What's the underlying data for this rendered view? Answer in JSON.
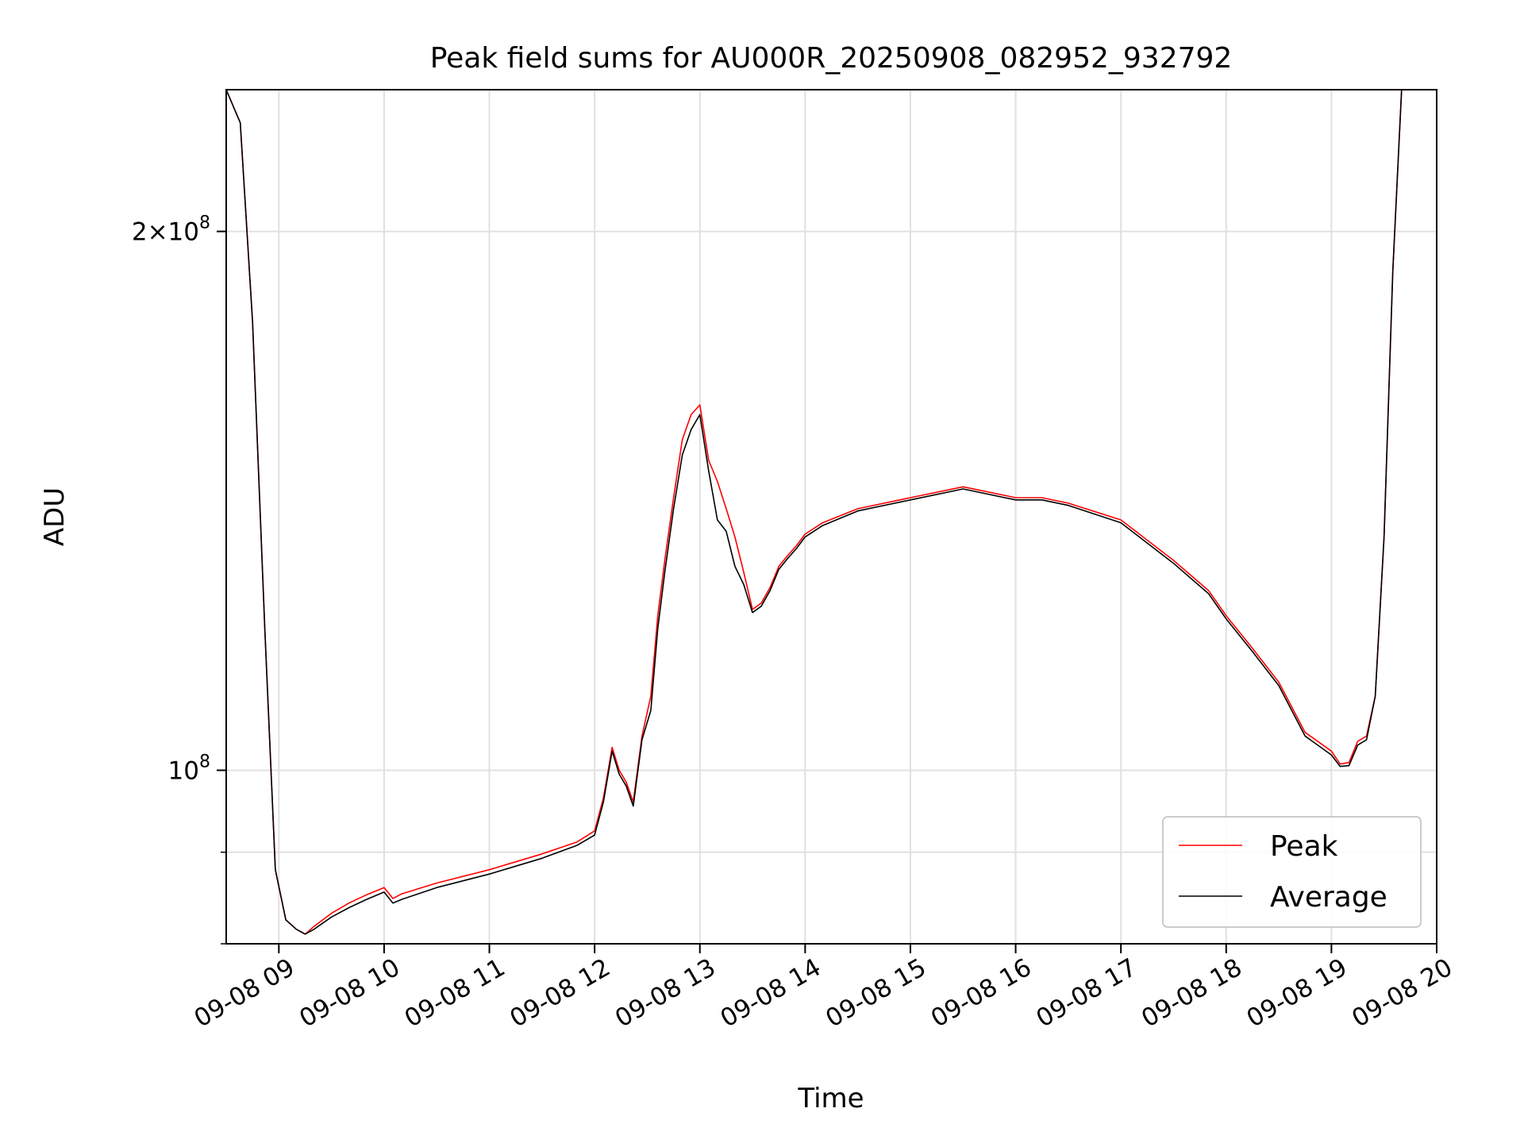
{
  "chart_data": {
    "type": "line",
    "title": "Peak field sums for AU000R_20250908_082952_932792",
    "xlabel": "Time",
    "ylabel": "ADU",
    "yscale": "log",
    "xlim": [
      "2025-09-08 08:30",
      "2025-09-08 20:00"
    ],
    "ylim": [
      80000000,
      240000000
    ],
    "x_ticks": [
      "09-08 09",
      "09-08 10",
      "09-08 11",
      "09-08 12",
      "09-08 13",
      "09-08 14",
      "09-08 15",
      "09-08 16",
      "09-08 17",
      "09-08 18",
      "09-08 19",
      "09-08 20"
    ],
    "y_ticks": [
      {
        "value": 200000000,
        "label": "2×10",
        "exp": "8"
      },
      {
        "value": 100000000,
        "label": "10",
        "exp": "8"
      }
    ],
    "grid": true,
    "legend_position": "lower right",
    "x": [
      "08:30",
      "08:38",
      "08:45",
      "08:52",
      "08:58",
      "09:04",
      "09:10",
      "09:15",
      "09:20",
      "09:30",
      "09:40",
      "09:50",
      "10:00",
      "10:05",
      "10:10",
      "10:30",
      "11:00",
      "11:30",
      "11:50",
      "12:00",
      "12:05",
      "12:10",
      "12:14",
      "12:18",
      "12:22",
      "12:27",
      "12:32",
      "12:36",
      "12:40",
      "12:45",
      "12:50",
      "12:55",
      "13:00",
      "13:05",
      "13:10",
      "13:15",
      "13:20",
      "13:25",
      "13:30",
      "13:35",
      "13:40",
      "13:45",
      "13:50",
      "13:55",
      "14:00",
      "14:10",
      "14:30",
      "15:00",
      "15:30",
      "16:00",
      "16:15",
      "16:30",
      "17:00",
      "17:30",
      "17:50",
      "18:00",
      "18:15",
      "18:30",
      "18:45",
      "19:00",
      "19:05",
      "19:10",
      "19:15",
      "19:20",
      "19:25",
      "19:30",
      "19:35",
      "19:40",
      "19:45",
      "19:50",
      "19:55",
      "20:00"
    ],
    "series": [
      {
        "name": "Peak",
        "color": "#ff0000",
        "values": [
          240000000,
          230000000,
          178000000,
          120000000,
          88000000,
          82500000,
          81500000,
          81000000,
          81800000,
          83200000,
          84300000,
          85200000,
          86000000,
          84800000,
          85300000,
          86500000,
          88000000,
          89800000,
          91200000,
          92500000,
          96500000,
          103000000,
          100000000,
          98500000,
          96000000,
          104500000,
          110000000,
          122000000,
          131000000,
          142000000,
          153000000,
          158000000,
          160000000,
          149000000,
          145000000,
          140000000,
          135000000,
          129000000,
          123000000,
          124000000,
          126500000,
          130000000,
          131800000,
          133500000,
          135500000,
          137500000,
          140000000,
          142000000,
          144000000,
          142000000,
          142000000,
          141000000,
          138000000,
          131000000,
          126000000,
          122000000,
          117000000,
          112000000,
          105000000,
          102500000,
          100800000,
          101000000,
          103800000,
          104500000,
          110000000,
          135000000,
          190000000,
          240000000,
          240000000,
          240000000,
          240000000,
          240000000
        ]
      },
      {
        "name": "Average",
        "color": "#000000",
        "values": [
          240000000,
          230000000,
          178000000,
          120000000,
          88000000,
          82500000,
          81500000,
          81000000,
          81500000,
          82800000,
          83800000,
          84700000,
          85500000,
          84300000,
          84700000,
          86000000,
          87500000,
          89300000,
          90800000,
          92000000,
          96000000,
          102500000,
          99500000,
          98000000,
          95500000,
          104000000,
          108000000,
          120000000,
          129000000,
          140000000,
          150000000,
          155000000,
          158000000,
          147000000,
          138000000,
          136000000,
          130000000,
          127000000,
          122500000,
          123500000,
          126000000,
          129500000,
          131300000,
          133000000,
          135000000,
          137000000,
          139600000,
          141600000,
          143600000,
          141600000,
          141600000,
          140600000,
          137500000,
          130500000,
          125500000,
          121500000,
          116500000,
          111500000,
          104500000,
          102000000,
          100500000,
          100600000,
          103300000,
          104000000,
          110000000,
          135000000,
          190000000,
          240000000,
          240000000,
          240000000,
          240000000,
          240000000
        ]
      }
    ]
  }
}
